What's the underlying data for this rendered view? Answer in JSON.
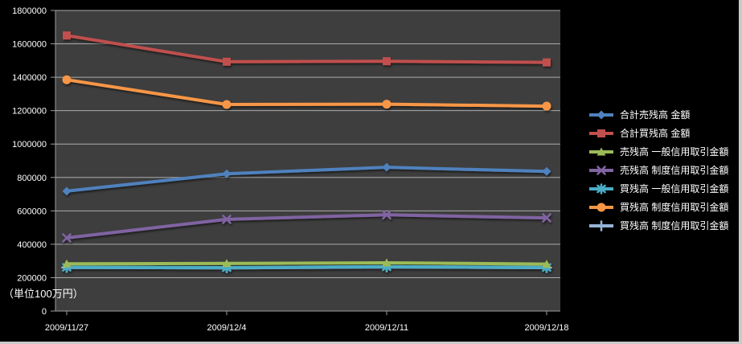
{
  "chart_data": {
    "type": "line",
    "title": "",
    "unit_label": "（単位100万円）",
    "categories": [
      "2009/11/27",
      "2009/12/4",
      "2009/12/11",
      "2009/12/18"
    ],
    "y_ticks": [
      "0",
      "200000",
      "400000",
      "600000",
      "800000",
      "1000000",
      "1200000",
      "1400000",
      "1600000",
      "1800000"
    ],
    "ylim": [
      0,
      1800000
    ],
    "grid": true,
    "legend_position": "right",
    "colors": {
      "background": "#000000",
      "plot_background": "#3E3E3E",
      "gridline": "#ABABAB",
      "axis_line": "#9E9E9E",
      "axis_text": "#FFFFFF",
      "window_edge": "#C9C9C9"
    },
    "series": [
      {
        "name": "合計売残高 金額",
        "color": "#4F81BD",
        "marker": "diamond",
        "values": [
          718000,
          822000,
          861000,
          836000
        ]
      },
      {
        "name": "合計買残高 金額",
        "color": "#C0504D",
        "marker": "square",
        "values": [
          1650000,
          1493000,
          1496000,
          1489000
        ]
      },
      {
        "name": "売残高 一般信用取引金額",
        "color": "#9BBB59",
        "marker": "triangle",
        "values": [
          283000,
          285000,
          289000,
          281000
        ]
      },
      {
        "name": "売残高 制度信用取引金額",
        "color": "#8064A2",
        "marker": "x",
        "values": [
          438000,
          549000,
          576000,
          558000
        ]
      },
      {
        "name": "買残高 一般信用取引金額",
        "color": "#4BACC6",
        "marker": "asterisk",
        "values": [
          262000,
          260000,
          265000,
          261000
        ]
      },
      {
        "name": "買残高 制度信用取引金額",
        "color": "#F79646",
        "marker": "circle",
        "values": [
          1385000,
          1237000,
          1239000,
          1227000
        ]
      },
      {
        "name": "買残高 制度信用取引金額",
        "color": "#95B3D7",
        "marker": "plus",
        "values": [
          261000,
          259000,
          264000,
          260000
        ]
      }
    ]
  }
}
